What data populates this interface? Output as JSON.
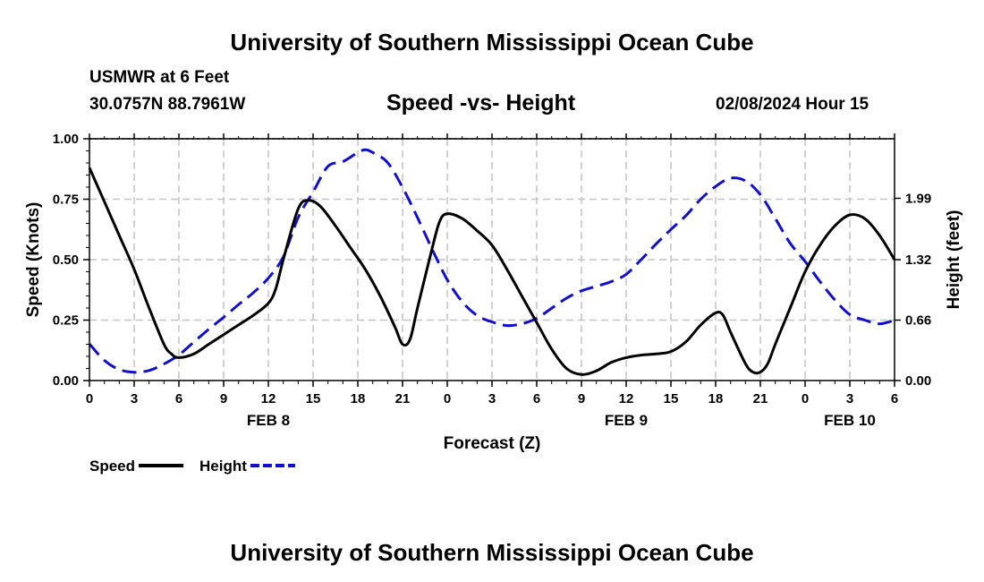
{
  "page": {
    "title_top": "University of Southern Mississippi Ocean Cube",
    "title_bottom": "University of Southern Mississippi Ocean Cube",
    "station_name": "USMWR at 6 Feet",
    "station_coords": "30.0757N  88.7961W",
    "datetime": "02/08/2024 Hour 15"
  },
  "chart_data": {
    "type": "line",
    "title": "Speed -vs- Height",
    "xlabel": "Forecast (Z)",
    "ylabel": "Speed (Knots)",
    "ylabel_right": "Height (feet)",
    "x_range": [
      0,
      54
    ],
    "ylim": [
      0,
      1
    ],
    "ylim_right": [
      0,
      2.64
    ],
    "x_ticks": [
      {
        "x": 0,
        "label": "0"
      },
      {
        "x": 3,
        "label": "3"
      },
      {
        "x": 6,
        "label": "6"
      },
      {
        "x": 9,
        "label": "9"
      },
      {
        "x": 12,
        "label": "12"
      },
      {
        "x": 15,
        "label": "15"
      },
      {
        "x": 18,
        "label": "18"
      },
      {
        "x": 21,
        "label": "21"
      },
      {
        "x": 24,
        "label": "0"
      },
      {
        "x": 27,
        "label": "3"
      },
      {
        "x": 30,
        "label": "6"
      },
      {
        "x": 33,
        "label": "9"
      },
      {
        "x": 36,
        "label": "12"
      },
      {
        "x": 39,
        "label": "15"
      },
      {
        "x": 42,
        "label": "18"
      },
      {
        "x": 45,
        "label": "21"
      },
      {
        "x": 48,
        "label": "0"
      },
      {
        "x": 51,
        "label": "3"
      },
      {
        "x": 54,
        "label": "6"
      }
    ],
    "date_labels": [
      {
        "x": 12,
        "label": "FEB 8"
      },
      {
        "x": 36,
        "label": "FEB 9"
      },
      {
        "x": 51,
        "label": "FEB 10"
      }
    ],
    "y_ticks_left": [
      {
        "v": 0,
        "label": "0.00"
      },
      {
        "v": 0.25,
        "label": "0.25"
      },
      {
        "v": 0.5,
        "label": "0.50"
      },
      {
        "v": 0.75,
        "label": "0.75"
      },
      {
        "v": 1.0,
        "label": "1.00"
      }
    ],
    "y_ticks_right": [
      {
        "v": 0,
        "label": "0.00"
      },
      {
        "v": 0.66,
        "label": "0.66"
      },
      {
        "v": 1.32,
        "label": "1.32"
      },
      {
        "v": 1.99,
        "label": "1.99"
      }
    ],
    "series": [
      {
        "name": "Speed",
        "axis": "left",
        "color": "#000000",
        "style": "solid",
        "points": [
          [
            0,
            0.88
          ],
          [
            1,
            0.74
          ],
          [
            2,
            0.6
          ],
          [
            3,
            0.46
          ],
          [
            4,
            0.3
          ],
          [
            5,
            0.15
          ],
          [
            5.5,
            0.11
          ],
          [
            6,
            0.095
          ],
          [
            7,
            0.11
          ],
          [
            8,
            0.15
          ],
          [
            9,
            0.19
          ],
          [
            10,
            0.23
          ],
          [
            11,
            0.27
          ],
          [
            12,
            0.32
          ],
          [
            12.5,
            0.38
          ],
          [
            13,
            0.5
          ],
          [
            14,
            0.71
          ],
          [
            14.7,
            0.745
          ],
          [
            15.5,
            0.72
          ],
          [
            16.5,
            0.64
          ],
          [
            17.5,
            0.55
          ],
          [
            18.5,
            0.46
          ],
          [
            19.5,
            0.35
          ],
          [
            20.5,
            0.22
          ],
          [
            21,
            0.15
          ],
          [
            21.5,
            0.17
          ],
          [
            22,
            0.3
          ],
          [
            23,
            0.55
          ],
          [
            23.5,
            0.66
          ],
          [
            24,
            0.69
          ],
          [
            25,
            0.67
          ],
          [
            26,
            0.62
          ],
          [
            27,
            0.56
          ],
          [
            28,
            0.46
          ],
          [
            29,
            0.35
          ],
          [
            30,
            0.24
          ],
          [
            31,
            0.13
          ],
          [
            32,
            0.05
          ],
          [
            33,
            0.025
          ],
          [
            34,
            0.04
          ],
          [
            35,
            0.075
          ],
          [
            36,
            0.095
          ],
          [
            37,
            0.105
          ],
          [
            38,
            0.11
          ],
          [
            39,
            0.12
          ],
          [
            40,
            0.16
          ],
          [
            41,
            0.23
          ],
          [
            42,
            0.28
          ],
          [
            42.5,
            0.27
          ],
          [
            43,
            0.2
          ],
          [
            44,
            0.07
          ],
          [
            44.5,
            0.035
          ],
          [
            45,
            0.035
          ],
          [
            45.5,
            0.07
          ],
          [
            46,
            0.15
          ],
          [
            47,
            0.3
          ],
          [
            48,
            0.45
          ],
          [
            49,
            0.56
          ],
          [
            50,
            0.64
          ],
          [
            51,
            0.685
          ],
          [
            52,
            0.67
          ],
          [
            53,
            0.6
          ],
          [
            54,
            0.5
          ]
        ]
      },
      {
        "name": "Height",
        "axis": "right",
        "color": "#1010cc",
        "style": "dashed",
        "points": [
          [
            0,
            0.4
          ],
          [
            1,
            0.22
          ],
          [
            2,
            0.12
          ],
          [
            3,
            0.09
          ],
          [
            4,
            0.11
          ],
          [
            5,
            0.18
          ],
          [
            6,
            0.28
          ],
          [
            7,
            0.42
          ],
          [
            8,
            0.56
          ],
          [
            9,
            0.69
          ],
          [
            10,
            0.83
          ],
          [
            11,
            0.96
          ],
          [
            12,
            1.12
          ],
          [
            13,
            1.35
          ],
          [
            14,
            1.78
          ],
          [
            15,
            2.06
          ],
          [
            16,
            2.34
          ],
          [
            17,
            2.39
          ],
          [
            18,
            2.49
          ],
          [
            18.5,
            2.52
          ],
          [
            19,
            2.49
          ],
          [
            20,
            2.38
          ],
          [
            21,
            2.11
          ],
          [
            22,
            1.78
          ],
          [
            23,
            1.43
          ],
          [
            24,
            1.1
          ],
          [
            25,
            0.86
          ],
          [
            26,
            0.71
          ],
          [
            27,
            0.64
          ],
          [
            28,
            0.6
          ],
          [
            29,
            0.62
          ],
          [
            30,
            0.68
          ],
          [
            31,
            0.79
          ],
          [
            32,
            0.9
          ],
          [
            33,
            0.98
          ],
          [
            34,
            1.03
          ],
          [
            35,
            1.08
          ],
          [
            36,
            1.16
          ],
          [
            37,
            1.32
          ],
          [
            38,
            1.49
          ],
          [
            39,
            1.65
          ],
          [
            40,
            1.8
          ],
          [
            41,
            1.98
          ],
          [
            42,
            2.12
          ],
          [
            43,
            2.21
          ],
          [
            44,
            2.18
          ],
          [
            45,
            2.03
          ],
          [
            46,
            1.77
          ],
          [
            47,
            1.5
          ],
          [
            48,
            1.3
          ],
          [
            49,
            1.08
          ],
          [
            50,
            0.88
          ],
          [
            51,
            0.72
          ],
          [
            52,
            0.66
          ],
          [
            53,
            0.62
          ],
          [
            54,
            0.66
          ]
        ]
      }
    ],
    "legend": {
      "placement": "bottom-left",
      "items": [
        {
          "label": "Speed",
          "color": "#000000",
          "style": "solid"
        },
        {
          "label": "Height",
          "color": "#1010cc",
          "style": "dashed"
        }
      ]
    }
  }
}
